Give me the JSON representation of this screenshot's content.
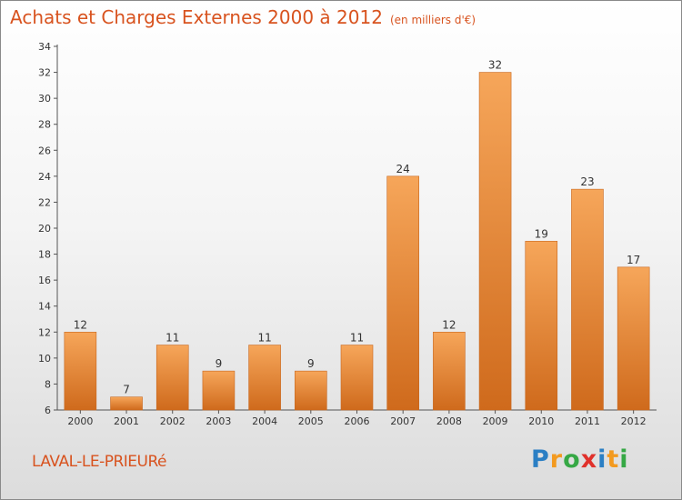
{
  "header": {
    "title": "Achats et Charges Externes 2000 à 2012",
    "subtitle": "(en milliers d'€)"
  },
  "commune": "LAVAL-LE-PRIEURé",
  "logo": {
    "letters": [
      "P",
      "r",
      "o",
      "x",
      "i",
      "t",
      "i"
    ],
    "colors": [
      "#2b7fc4",
      "#f39a1f",
      "#36a845",
      "#e0312b",
      "#2b7fc4",
      "#f39a1f",
      "#36a845"
    ]
  },
  "colors": {
    "bar_top": "#f6a65a",
    "bar_bottom": "#cf6a1c",
    "bar_stroke": "#c8671e",
    "accent": "#d8531f"
  },
  "chart_data": {
    "type": "bar",
    "categories": [
      "2000",
      "2001",
      "2002",
      "2003",
      "2004",
      "2005",
      "2006",
      "2007",
      "2008",
      "2009",
      "2010",
      "2011",
      "2012"
    ],
    "values": [
      12,
      7,
      11,
      9,
      11,
      9,
      11,
      24,
      12,
      32,
      19,
      23,
      17
    ],
    "ylim": [
      6,
      34
    ],
    "yticks": [
      6,
      8,
      10,
      12,
      14,
      16,
      18,
      20,
      22,
      24,
      26,
      28,
      30,
      32,
      34
    ],
    "grid": false,
    "data_labels": true
  }
}
